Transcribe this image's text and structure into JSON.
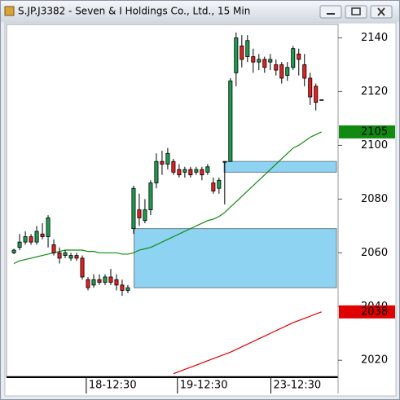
{
  "chart_data": {
    "type": "candlestick",
    "title": "S.JP.J3382 - Seven & I Holdings Co., Ltd., 15 Min",
    "x": [
      0,
      1,
      2,
      3,
      4,
      5,
      6,
      7,
      8,
      9,
      10,
      11,
      12,
      13,
      14,
      15,
      16,
      17,
      18,
      19,
      20,
      21,
      22,
      23,
      24,
      25,
      26,
      27,
      28,
      29,
      30,
      31,
      32,
      33,
      34,
      35,
      36,
      37,
      38,
      39,
      40,
      41,
      42,
      43,
      44,
      45,
      46,
      47,
      48,
      49,
      50,
      51,
      52,
      53,
      54
    ],
    "open": [
      2060,
      2062,
      2064,
      2066,
      2064,
      2067,
      2066,
      2063,
      2060,
      2059,
      2058,
      2059,
      2058,
      2050,
      2048,
      2050,
      2049,
      2051,
      2050,
      2048,
      2046,
      2069,
      2076,
      2072,
      2076,
      2086,
      2094,
      2093,
      2094,
      2091,
      2090,
      2091,
      2090,
      2091,
      2090,
      2086,
      2084,
      2094,
      2094,
      2127,
      2137,
      2133,
      2133,
      2131,
      2132,
      2131,
      2130,
      2130,
      2126,
      2129,
      2134,
      2130,
      2125,
      2122,
      2117
    ],
    "high": [
      2061.5,
      2067,
      2068,
      2067,
      2070,
      2071,
      2074,
      2065,
      2062,
      2061,
      2060,
      2060,
      2059,
      2051,
      2052,
      2052,
      2052,
      2054,
      2052,
      2050,
      2048,
      2085,
      2082,
      2080,
      2087,
      2097,
      2098,
      2099,
      2095,
      2093,
      2092,
      2092,
      2092,
      2092,
      2093,
      2088,
      2088,
      2094,
      2125,
      2142,
      2141,
      2141,
      2136,
      2134,
      2133,
      2134,
      2132,
      2131,
      2131,
      2137,
      2136,
      2134,
      2127,
      2123,
      2117
    ],
    "low": [
      2059.5,
      2061,
      2063,
      2063,
      2063,
      2065,
      2062,
      2059,
      2056,
      2058,
      2057,
      2057,
      2050,
      2046,
      2047,
      2048,
      2048,
      2048,
      2046,
      2044,
      2045,
      2067,
      2070,
      2071,
      2074,
      2084,
      2089,
      2091,
      2089,
      2088,
      2088,
      2088,
      2089,
      2087,
      2089,
      2082,
      2082,
      2078,
      2094,
      2122,
      2129,
      2131,
      2127,
      2128,
      2127,
      2128,
      2126,
      2123,
      2124,
      2128,
      2126,
      2122,
      2115,
      2113,
      2117
    ],
    "close": [
      2061,
      2064,
      2066,
      2064,
      2068,
      2066,
      2073,
      2060,
      2058,
      2060,
      2059,
      2058,
      2051,
      2047,
      2050,
      2049,
      2051,
      2049,
      2048,
      2046,
      2047,
      2084,
      2073,
      2076,
      2086,
      2094,
      2093,
      2097,
      2090,
      2089,
      2091,
      2089,
      2091,
      2089,
      2092,
      2083,
      2087,
      2094,
      2124,
      2140,
      2132,
      2139,
      2131,
      2132,
      2129,
      2132,
      2128,
      2125,
      2129,
      2136,
      2132,
      2125,
      2118,
      2116,
      2117
    ],
    "up_color": "#1e9c50",
    "down_color": "#e42020",
    "series": [
      {
        "color": "#108a10",
        "values": [
          2056,
          2057,
          2057.5,
          2058,
          2058.5,
          2059,
          2059.5,
          2060,
          2060.5,
          2061,
          2061,
          2061,
          2061,
          2060.5,
          2060.5,
          2060,
          2060,
          2060,
          2060,
          2059.5,
          2059.5,
          2060,
          2061,
          2061.5,
          2062,
          2063,
          2064,
          2065,
          2066,
          2067,
          2068,
          2069,
          2070,
          2071,
          2072,
          2072.5,
          2073.5,
          2075,
          2077,
          2079,
          2081,
          2083,
          2085,
          2087,
          2089,
          2091,
          2093,
          2095,
          2097,
          2099,
          2100,
          2101.5,
          2103,
          2104,
          2105
        ]
      },
      {
        "color": "#e00000",
        "values": [
          null,
          null,
          null,
          null,
          null,
          null,
          null,
          null,
          null,
          null,
          null,
          null,
          null,
          null,
          null,
          null,
          null,
          null,
          null,
          null,
          null,
          null,
          null,
          null,
          null,
          null,
          null,
          null,
          2015,
          2015.8,
          2016.6,
          2017.4,
          2018.2,
          2019,
          2019.8,
          2020.6,
          2021.4,
          2022.2,
          2023,
          2024,
          2025,
          2026,
          2027,
          2028,
          2029,
          2030,
          2031,
          2032,
          2033,
          2034,
          2034.8,
          2035.6,
          2036.4,
          2037.2,
          2038
        ]
      }
    ],
    "zones": [
      {
        "low": 2047,
        "high": 2069,
        "start": 21.1
      },
      {
        "low": 2090,
        "high": 2094,
        "start": 36.9
      }
    ],
    "zone_color": "#8fd3f2",
    "xlim": [
      -1.3,
      56.9
    ],
    "xticks": [
      {
        "value": 12.7,
        "label": "18-12:30"
      },
      {
        "value": 28.7,
        "label": "19-12:30"
      },
      {
        "value": 45.1,
        "label": "23-12:30"
      }
    ],
    "ylim": [
      2014,
      2145
    ],
    "yticks": [
      2020,
      2040,
      2060,
      2080,
      2100,
      2120,
      2140
    ]
  }
}
